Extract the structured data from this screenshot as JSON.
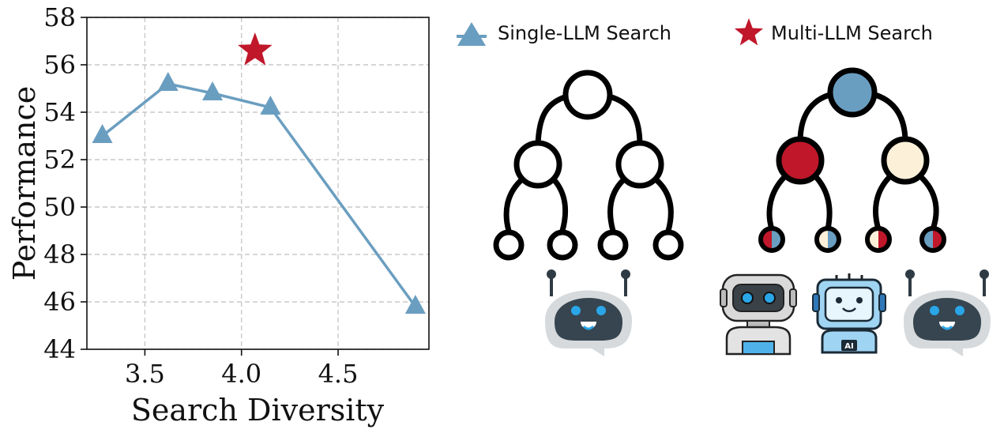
{
  "chart_data": {
    "type": "line",
    "xlabel": "Search Diversity",
    "ylabel": "Performance",
    "xlim": [
      3.2,
      4.97
    ],
    "ylim": [
      44,
      58
    ],
    "x_ticks": [
      "3.5",
      "4.0",
      "4.5"
    ],
    "y_ticks": [
      "44",
      "46",
      "48",
      "50",
      "52",
      "54",
      "56",
      "58"
    ],
    "grid": true,
    "series": [
      {
        "name": "Single-LLM Search",
        "marker": "triangle",
        "color": "#6a9ec0",
        "points": [
          {
            "x": 3.28,
            "y": 53.0
          },
          {
            "x": 3.62,
            "y": 55.2
          },
          {
            "x": 3.85,
            "y": 54.8
          },
          {
            "x": 4.15,
            "y": 54.2
          },
          {
            "x": 4.9,
            "y": 45.8
          }
        ]
      },
      {
        "name": "Multi-LLM Search",
        "marker": "star",
        "color": "#c0172a",
        "points": [
          {
            "x": 4.07,
            "y": 56.6
          }
        ]
      }
    ]
  },
  "illustration": {
    "single_tree_colors": [
      "#ffffff"
    ],
    "multi_tree_colors": {
      "root": "#6a9ec0",
      "left": "#c0172a",
      "right": "#fcf0d9",
      "leaves": [
        [
          "#c0172a",
          "#6a9ec0"
        ],
        [
          "#fcf0d9",
          "#6a9ec0"
        ],
        [
          "#fcf0d9",
          "#c0172a"
        ],
        [
          "#6a9ec0",
          "#c0172a"
        ]
      ]
    },
    "single_robot": "robot-chat-icon",
    "multi_robots": [
      "robot-sketch-icon",
      "robot-ai-icon",
      "robot-chat-icon"
    ],
    "robot_badge_text": "AI"
  }
}
